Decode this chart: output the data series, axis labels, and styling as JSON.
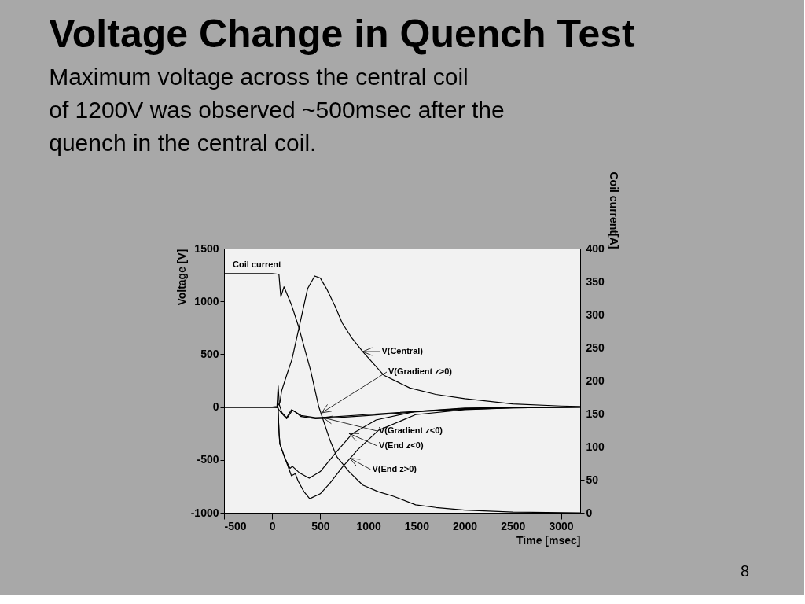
{
  "chart_data": {
    "type": "line",
    "title": "Voltage Change in Quench Test",
    "subtitle": "Maximum voltage across the central coil of 1200V was observed ~500msec after the quench in the central coil.",
    "xlabel": "Time [msec]",
    "ylabel": "Voltage [V]",
    "y2label": "Coil current[A]",
    "xlim": [
      -500,
      3200
    ],
    "xticks": [
      -500,
      0,
      500,
      1000,
      1500,
      2000,
      2500,
      3000
    ],
    "ylim": [
      -1000,
      1500
    ],
    "yticks": [
      -1000,
      -500,
      0,
      500,
      1000,
      1500
    ],
    "y2lim": [
      0,
      400
    ],
    "y2ticks": [
      0,
      50,
      100,
      150,
      200,
      250,
      300,
      350,
      400
    ],
    "grid": false,
    "marker": "none",
    "line_style": "solid",
    "series": [
      {
        "color": "#000000",
        "axis": "y2",
        "x": [
          -500,
          0,
          70,
          82,
          90,
          123,
          200,
          278,
          400,
          483,
          600,
          671,
          800,
          941,
          1100,
          1260,
          1490,
          1700,
          2000,
          2500,
          3200
        ],
        "values": [
          362,
          362,
          361,
          340,
          327,
          342,
          315,
          280,
          215,
          161,
          110,
          85,
          62,
          42,
          32,
          25,
          12,
          8,
          4,
          1,
          0
        ]
      },
      {
        "color": "#000000",
        "x": [
          -500,
          0,
          50,
          80,
          98,
          150,
          205,
          278,
          368,
          442,
          500,
          565,
          650,
          728,
          830,
          941,
          1162,
          1432,
          1700,
          2000,
          2500,
          3000,
          3200
        ],
        "values": [
          0,
          0,
          2,
          40,
          152,
          300,
          450,
          748,
          1120,
          1240,
          1220,
          1120,
          960,
          795,
          650,
          525,
          300,
          180,
          120,
          80,
          30,
          10,
          5
        ]
      },
      {
        "color": "#000000",
        "x": [
          -500,
          0,
          50,
          62,
          75,
          100,
          150,
          200,
          230,
          300,
          450,
          600,
          1000,
          1500,
          2000,
          2500,
          3200
        ],
        "values": [
          0,
          0,
          5,
          200,
          20,
          -50,
          -100,
          -25,
          -40,
          -80,
          -100,
          -95,
          -70,
          -40,
          -15,
          -5,
          0
        ]
      },
      {
        "color": "#000000",
        "x": [
          -500,
          0,
          50,
          90,
          150,
          210,
          240,
          300,
          450,
          600,
          1000,
          1500,
          2000,
          2500,
          3200
        ],
        "values": [
          0,
          0,
          0,
          -50,
          -110,
          -30,
          -45,
          -90,
          -110,
          -105,
          -80,
          -45,
          -20,
          -7,
          0
        ]
      },
      {
        "color": "#000000",
        "x": [
          -500,
          0,
          60,
          72,
          80,
          130,
          185,
          210,
          280,
          385,
          500,
          671,
          835,
          1080,
          1500,
          2000,
          2500,
          3200
        ],
        "values": [
          0,
          0,
          -5,
          -250,
          -350,
          -480,
          -580,
          -560,
          -620,
          -673,
          -610,
          -420,
          -250,
          -122,
          -40,
          -10,
          -3,
          0
        ]
      },
      {
        "color": "#000000",
        "x": [
          -500,
          0,
          60,
          72,
          80,
          140,
          200,
          240,
          270,
          330,
          390,
          500,
          600,
          728,
          892,
          1105,
          1490,
          2000,
          2500,
          3200
        ],
        "values": [
          0,
          0,
          -5,
          -250,
          -350,
          -500,
          -650,
          -630,
          -700,
          -800,
          -867,
          -820,
          -720,
          -570,
          -400,
          -220,
          -72,
          -25,
          -8,
          0
        ]
      }
    ],
    "annotations": [
      "Coil current",
      {
        "text": "V(Central)",
        "x": 941,
        "y": 525
      },
      {
        "text": "V(Gradient z>0)",
        "x": 513,
        "y": -55
      },
      {
        "text": "V(Gradient z<0)",
        "x": 529,
        "y": -100
      },
      {
        "text": "V(End z<0)",
        "x": 799,
        "y": -249
      },
      {
        "text": "V(End z>0)",
        "x": 810,
        "y": -485
      },
      "8"
    ]
  }
}
